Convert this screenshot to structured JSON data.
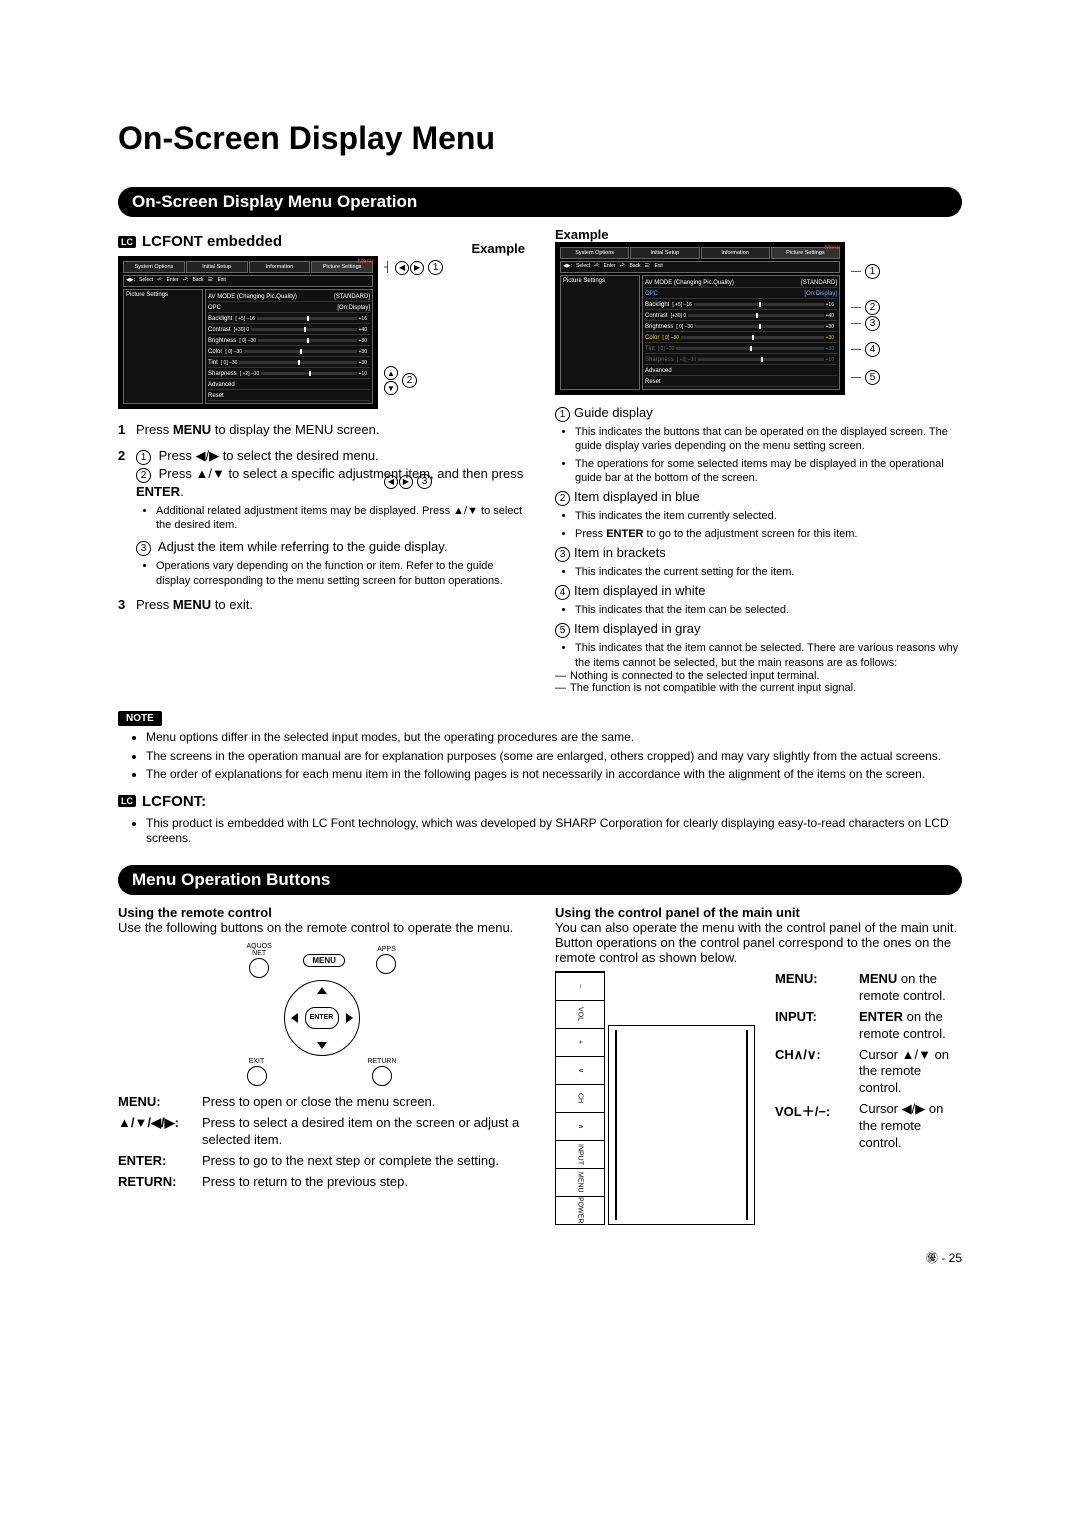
{
  "page": {
    "title": "On-Screen Display Menu",
    "footer": "㊝ - 25"
  },
  "section1": {
    "bar": "On-Screen Display Menu Operation",
    "lcfont_heading": "LCFONT embedded",
    "example_label": "Example",
    "osd": {
      "tabs": [
        "System\nOptions",
        "Initial\nSetup",
        "Information",
        "Picture\nSettings"
      ],
      "menu_label": "Menu",
      "guide": [
        "Select",
        "Enter",
        "Back",
        "Exit"
      ],
      "side_label": "Picture Settings",
      "rows": [
        {
          "label": "AV MODE (Changing Pic.Quality)",
          "value": "[STANDARD]"
        },
        {
          "label": "OPC",
          "value": "[On:Display]"
        },
        {
          "label": "Backlight",
          "min": "[ +5] –16",
          "max": "+16"
        },
        {
          "label": "Contrast",
          "min": "[+30]  0",
          "max": "+40"
        },
        {
          "label": "Brightness",
          "min": "[  0] –30",
          "max": "+30"
        },
        {
          "label": "Color",
          "min": "[  0] –30",
          "max": "+30"
        },
        {
          "label": "Tint",
          "min": "[  0] –30",
          "max": "+30"
        },
        {
          "label": "Sharpness",
          "min": "[ +2] –10",
          "max": "+10"
        },
        {
          "label": "Advanced"
        },
        {
          "label": "Reset"
        }
      ]
    },
    "steps": [
      {
        "main": "Press MENU to display the MENU screen.",
        "bold": [
          "MENU"
        ]
      },
      {
        "main": "① Press ◀/▶ to select the desired menu.\n② Press ▲/▼ to select a specific adjustment item, and then press ENTER.",
        "bullets": [
          "Additional related adjustment items may be displayed. Press ▲/▼ to select the desired item."
        ],
        "sub3": "③ Adjust the item while referring to the guide display.",
        "bullets2": [
          "Operations vary depending on the function or item. Refer to the guide display corresponding to the menu setting screen for button operations."
        ]
      },
      {
        "main": "Press MENU to exit."
      }
    ],
    "right_guide": [
      {
        "num": "①",
        "title": "Guide display",
        "items": [
          "This indicates the buttons that can be operated on the displayed screen. The guide display varies depending on the menu setting screen.",
          "The operations for some selected items may be displayed in the operational guide bar at the bottom of the screen."
        ]
      },
      {
        "num": "②",
        "title": "Item displayed in blue",
        "items": [
          "This indicates the item currently selected.",
          "Press ENTER to go to the adjustment screen for this item."
        ]
      },
      {
        "num": "③",
        "title": "Item in brackets",
        "items": [
          "This indicates the current setting for the item."
        ]
      },
      {
        "num": "④",
        "title": "Item displayed in white",
        "items": [
          "This indicates that the item can be selected."
        ]
      },
      {
        "num": "⑤",
        "title": "Item displayed in gray",
        "items": [
          "This indicates that the item cannot be selected. There are various reasons why the items cannot be selected, but the main reasons are as follows:"
        ],
        "dash": [
          "Nothing is connected to the selected input terminal.",
          "The function is not compatible with the current input signal."
        ]
      }
    ],
    "note_label": "NOTE",
    "notes": [
      "Menu options differ in the selected input modes, but the operating procedures are the same.",
      "The screens in the operation manual are for explanation purposes (some are enlarged, others cropped) and may vary slightly from the actual screens.",
      "The order of explanations for each menu item in the following pages is not necessarily in accordance with the alignment of the items on the screen."
    ],
    "lcfont_label": "LCFONT:",
    "lcfont_text": "This product is embedded with LC Font technology, which was developed by SHARP Corporation for clearly displaying easy-to-read characters on LCD screens."
  },
  "section2": {
    "bar": "Menu Operation Buttons",
    "remote": {
      "heading": "Using the remote control",
      "intro": "Use the following buttons on the remote control to operate the menu.",
      "labels": {
        "aquos": "AQUOS\nNET",
        "menu": "MENU",
        "apps": "APPS",
        "enter": "ENTER",
        "exit": "EXIT",
        "return": "RETURN"
      },
      "defs": [
        {
          "term": "MENU:",
          "desc": "Press to open or close the menu screen."
        },
        {
          "term": "▲/▼/◀/▶:",
          "desc": "Press to select a desired item on the screen or adjust a selected item."
        },
        {
          "term": "ENTER:",
          "desc": "Press to go to the next step or complete the setting."
        },
        {
          "term": "RETURN:",
          "desc": "Press to return to the previous step."
        }
      ]
    },
    "unit": {
      "heading": "Using the control panel of the main unit",
      "intro": "You can also operate the menu with the control panel of the main unit.\nButton operations on the control panel correspond to the ones on the remote control as shown below.",
      "buttons": [
        "POWER",
        "MENU",
        "INPUT",
        "∧",
        "CH",
        "∨",
        "+",
        "VOL",
        "−"
      ],
      "defs": [
        {
          "term": "MENU:",
          "desc": "MENU on the remote control.",
          "bold": "MENU"
        },
        {
          "term": "INPUT:",
          "desc": "ENTER on the remote control.",
          "bold": "ENTER"
        },
        {
          "term": "CH∧/∨:",
          "desc": "Cursor ▲/▼ on the remote control."
        },
        {
          "term": "VOL＋/−:",
          "desc": "Cursor ◀/▶ on the remote control."
        }
      ]
    }
  }
}
